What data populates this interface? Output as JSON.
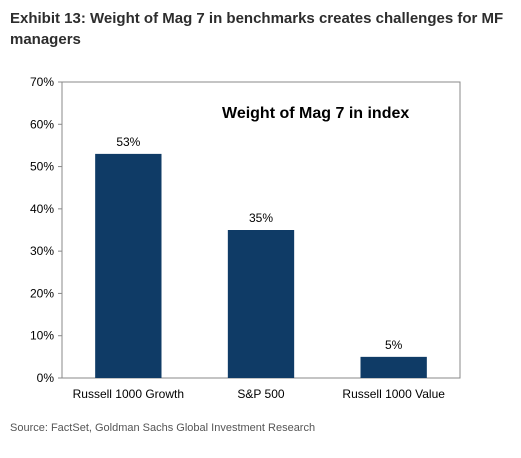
{
  "exhibit_title": "Exhibit 13: Weight of Mag 7 in benchmarks creates challenges for MF managers",
  "source": "Source: FactSet, Goldman Sachs Global Investment Research",
  "colors": {
    "bar": "#0f3b66",
    "axis": "#888888"
  },
  "chart_data": {
    "type": "bar",
    "title": "Weight of Mag 7 in index",
    "categories": [
      "Russell 1000 Growth",
      "S&P 500",
      "Russell 1000 Value"
    ],
    "values": [
      53,
      35,
      5
    ],
    "value_labels": [
      "53%",
      "35%",
      "5%"
    ],
    "ylim": [
      0,
      70
    ],
    "yticks": [
      "0%",
      "10%",
      "20%",
      "30%",
      "40%",
      "50%",
      "60%",
      "70%"
    ],
    "grid": false
  }
}
